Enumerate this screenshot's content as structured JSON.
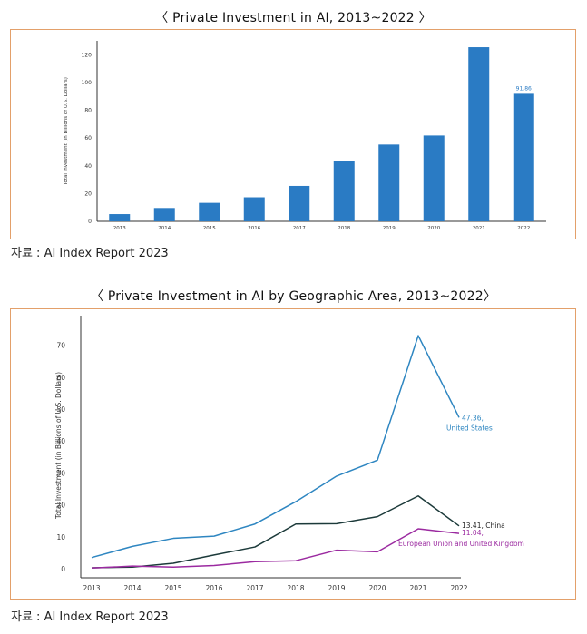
{
  "chart_data": [
    {
      "type": "bar",
      "title": "〈 Private Investment in AI, 2013~2022 〉",
      "ylabel": "Total Investment (in Billions of U.S. Dollars)",
      "xlabel": "",
      "categories": [
        "2013",
        "2014",
        "2015",
        "2016",
        "2017",
        "2018",
        "2019",
        "2020",
        "2021",
        "2022"
      ],
      "values": [
        5.2,
        9.6,
        13.3,
        17.3,
        25.5,
        43.3,
        55.3,
        61.8,
        125.4,
        91.86
      ],
      "ylim": [
        0,
        130
      ],
      "yticks": [
        0,
        20,
        40,
        60,
        80,
        100,
        120
      ],
      "data_labels": {
        "2022": "91.86"
      },
      "color": "#2a7bc4",
      "source": "자료 : AI Index Report 2023"
    },
    {
      "type": "line",
      "title": "〈 Private Investment in AI by Geographic Area, 2013~2022〉",
      "ylabel": "Total Investment (in Billions of U.S. Dollars)",
      "xlabel": "",
      "x": [
        "2013",
        "2014",
        "2015",
        "2016",
        "2017",
        "2018",
        "2019",
        "2020",
        "2021",
        "2022"
      ],
      "ylim": [
        0,
        75
      ],
      "yticks": [
        0,
        10,
        20,
        30,
        40,
        50,
        60,
        70
      ],
      "series": [
        {
          "name": "United States",
          "color": "#2e86c1",
          "values": [
            3.5,
            7.0,
            9.5,
            10.2,
            14.0,
            21.0,
            29.0,
            34.0,
            73.0,
            47.36
          ],
          "label_value": "47.36,",
          "label_name": "United States"
        },
        {
          "name": "China",
          "color": "#1c3a3a",
          "values": [
            0.3,
            0.5,
            1.7,
            4.3,
            6.8,
            14.0,
            14.1,
            16.3,
            22.8,
            13.41
          ],
          "label_value": "13.41, China",
          "label_name": ""
        },
        {
          "name": "European Union and United Kingdom",
          "color": "#9b2aa0",
          "values": [
            0.2,
            0.8,
            0.5,
            1.0,
            2.2,
            2.5,
            5.8,
            5.3,
            12.5,
            11.04
          ],
          "label_value": "11.04,",
          "label_name": "European Union and United Kingdom"
        }
      ],
      "source": "자료 : AI Index Report 2023"
    }
  ]
}
